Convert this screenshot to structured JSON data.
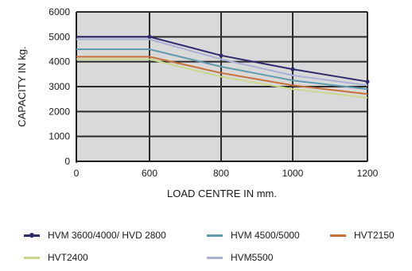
{
  "chart_data": {
    "type": "line",
    "xlabel": "LOAD CENTRE IN mm.",
    "ylabel": "CAPACITY IN kg.",
    "x_ticks": [
      "0",
      "600",
      "800",
      "1000",
      "1200"
    ],
    "x_categories": [
      600,
      800,
      1000,
      1200
    ],
    "y_ticks": [
      "0",
      "1000",
      "2000",
      "3000",
      "4000",
      "5000",
      "6000"
    ],
    "ylim": [
      0,
      6000
    ],
    "grid": true,
    "plot_background": "#d9d9d9",
    "grid_color": "#2b2b2b",
    "legend_position": "bottom",
    "series": [
      {
        "name": "HVM 3600/4000/ HVD 2800",
        "color": "#2d2a6e",
        "x": [
          0,
          600,
          800,
          1000,
          1200
        ],
        "y": [
          5000,
          5000,
          4250,
          3700,
          3200
        ],
        "marker": true
      },
      {
        "name": "HVM 4500/5000",
        "color": "#5f9bb0",
        "x": [
          0,
          600,
          800,
          1000,
          1200
        ],
        "y": [
          4500,
          4500,
          3800,
          3250,
          2900
        ],
        "marker": false
      },
      {
        "name": "HVT2150",
        "color": "#c8703a",
        "x": [
          0,
          600,
          800,
          1000,
          1200
        ],
        "y": [
          4200,
          4200,
          3550,
          3050,
          2700
        ],
        "marker": false
      },
      {
        "name": "HVT2400",
        "color": "#c7d98a",
        "x": [
          0,
          600,
          800,
          1000,
          1200
        ],
        "y": [
          4100,
          4100,
          3400,
          2900,
          2550
        ],
        "marker": false
      },
      {
        "name": "HVM5500",
        "color": "#aab0d6",
        "x": [
          0,
          600,
          800,
          1000,
          1200
        ],
        "y": [
          4900,
          4900,
          4100,
          3450,
          3050
        ],
        "marker": false
      }
    ]
  }
}
